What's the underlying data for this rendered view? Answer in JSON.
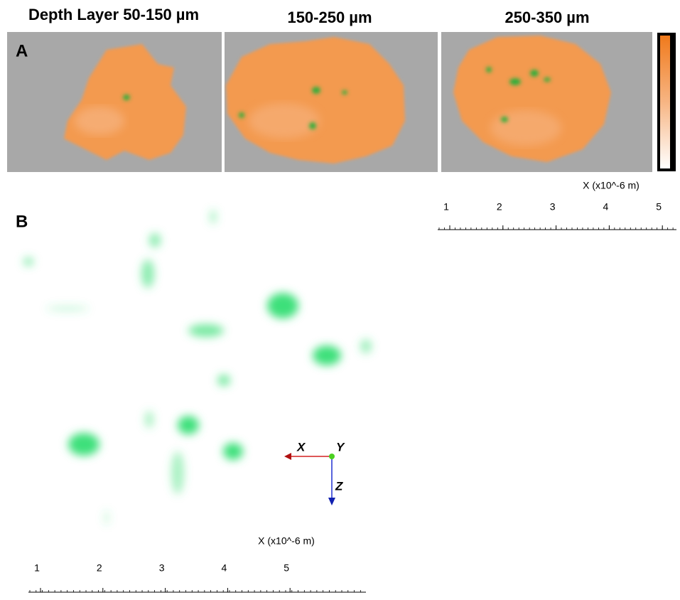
{
  "panel_a": {
    "label": "A",
    "titles": [
      "Depth Layer 50-150 µm",
      "150-250 µm",
      "250-350 µm"
    ],
    "scale": {
      "label": "X (x10^-6 m)",
      "ticks": [
        1,
        2,
        3,
        4,
        5
      ]
    }
  },
  "panel_b": {
    "label": "B",
    "scale": {
      "label": "X (x10^-6 m)",
      "ticks": [
        1,
        2,
        3,
        4,
        5
      ]
    },
    "axes": [
      "X",
      "Y",
      "Z"
    ]
  }
}
